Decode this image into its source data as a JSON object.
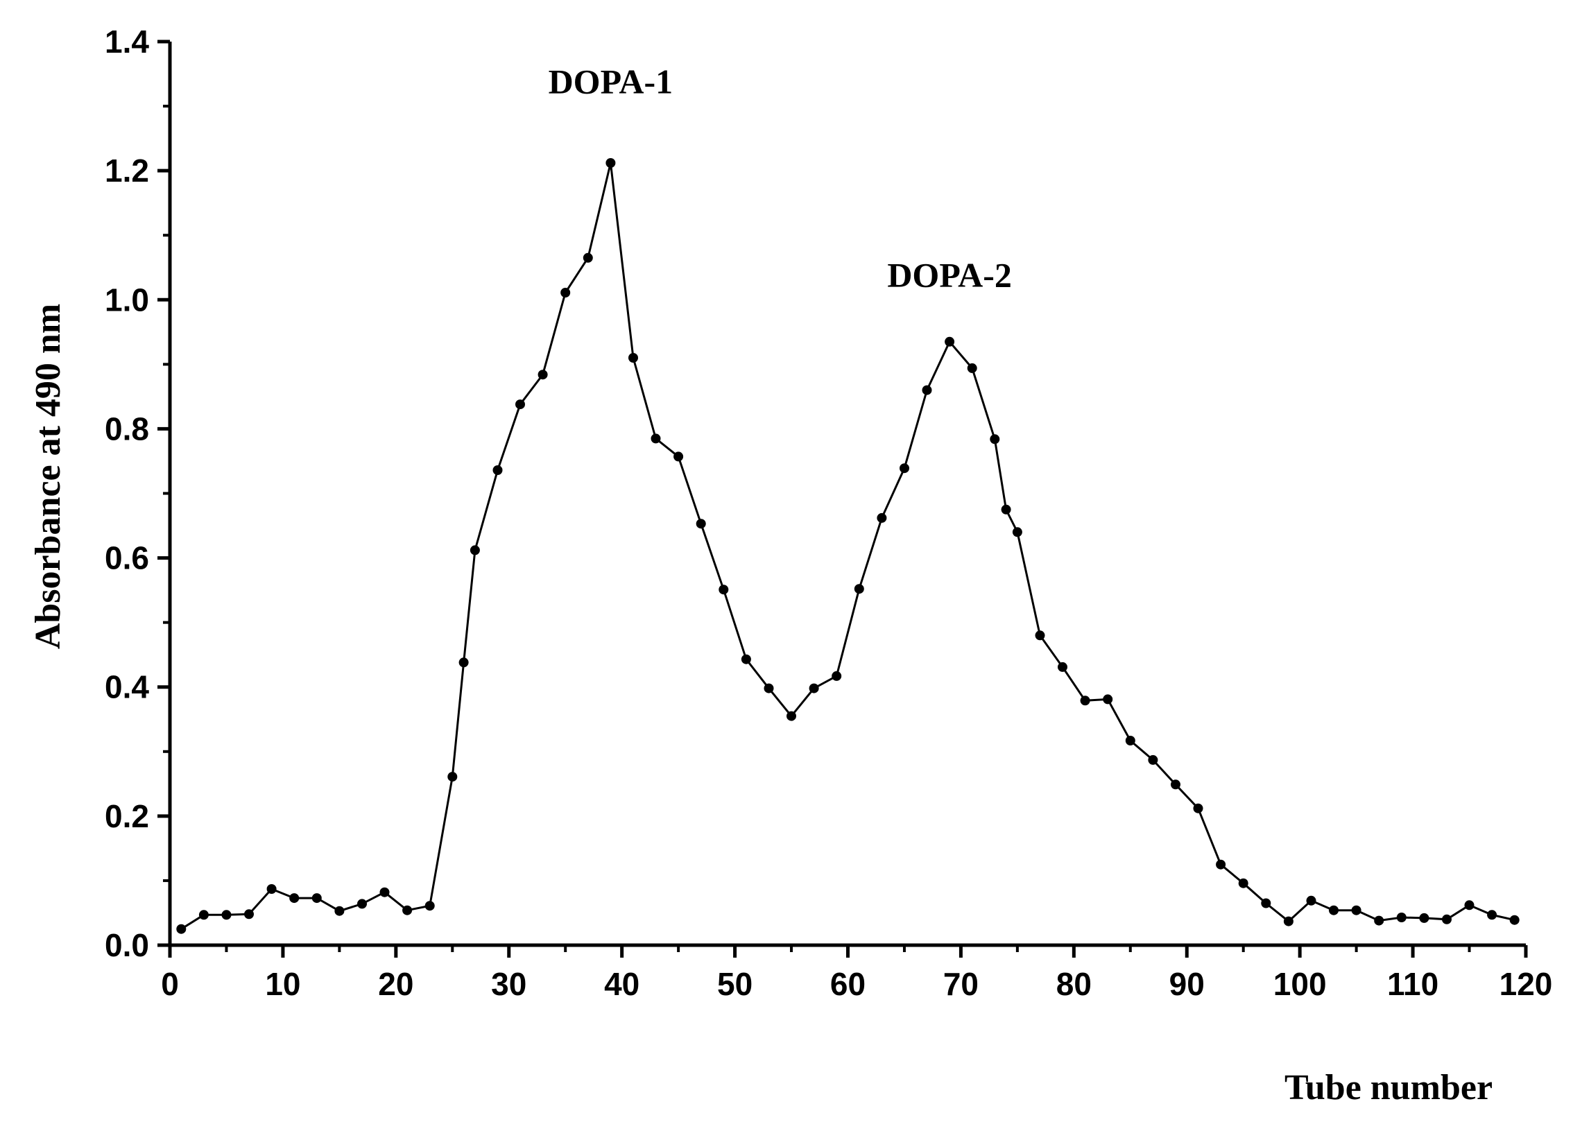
{
  "chart_data": {
    "type": "line",
    "xlabel": "Tube number",
    "ylabel": "Absorbance at 490 nm",
    "xlim": [
      0,
      120
    ],
    "ylim": [
      0,
      1.4
    ],
    "xticks": [
      "0",
      "10",
      "20",
      "30",
      "40",
      "50",
      "60",
      "70",
      "80",
      "90",
      "100",
      "110",
      "120"
    ],
    "yticks": [
      "0.0",
      "0.2",
      "0.4",
      "0.6",
      "0.8",
      "1.0",
      "1.2",
      "1.4"
    ],
    "grid": false,
    "marker": "circle",
    "color": "#000000",
    "series": [
      {
        "points": [
          [
            1,
            0.025
          ],
          [
            3,
            0.047
          ],
          [
            5,
            0.047
          ],
          [
            7,
            0.048
          ],
          [
            9,
            0.087
          ],
          [
            11,
            0.073
          ],
          [
            13,
            0.073
          ],
          [
            15,
            0.053
          ],
          [
            17,
            0.064
          ],
          [
            19,
            0.082
          ],
          [
            21,
            0.054
          ],
          [
            23,
            0.061
          ],
          [
            25,
            0.261
          ],
          [
            26,
            0.438
          ],
          [
            27,
            0.612
          ],
          [
            29,
            0.736
          ],
          [
            31,
            0.838
          ],
          [
            33,
            0.884
          ],
          [
            35,
            1.011
          ],
          [
            37,
            1.065
          ],
          [
            39,
            1.212
          ],
          [
            41,
            0.91
          ],
          [
            43,
            0.785
          ],
          [
            45,
            0.757
          ],
          [
            47,
            0.653
          ],
          [
            49,
            0.551
          ],
          [
            51,
            0.443
          ],
          [
            53,
            0.398
          ],
          [
            55,
            0.355
          ],
          [
            57,
            0.398
          ],
          [
            59,
            0.417
          ],
          [
            61,
            0.552
          ],
          [
            63,
            0.662
          ],
          [
            65,
            0.739
          ],
          [
            67,
            0.86
          ],
          [
            69,
            0.935
          ],
          [
            71,
            0.894
          ],
          [
            73,
            0.784
          ],
          [
            74,
            0.675
          ],
          [
            75,
            0.64
          ],
          [
            77,
            0.48
          ],
          [
            79,
            0.431
          ],
          [
            81,
            0.379
          ],
          [
            83,
            0.381
          ],
          [
            85,
            0.317
          ],
          [
            87,
            0.287
          ],
          [
            89,
            0.249
          ],
          [
            91,
            0.212
          ],
          [
            93,
            0.125
          ],
          [
            95,
            0.096
          ],
          [
            97,
            0.065
          ],
          [
            99,
            0.037
          ],
          [
            101,
            0.069
          ],
          [
            103,
            0.054
          ],
          [
            105,
            0.054
          ],
          [
            107,
            0.038
          ],
          [
            109,
            0.043
          ],
          [
            111,
            0.042
          ],
          [
            113,
            0.04
          ],
          [
            115,
            0.062
          ],
          [
            117,
            0.047
          ],
          [
            119,
            0.039
          ]
        ]
      }
    ],
    "annotations": [
      {
        "text": "DOPA-1",
        "x": 39,
        "y": 1.32
      },
      {
        "text": "DOPA-2",
        "x": 69,
        "y": 1.02
      }
    ]
  }
}
